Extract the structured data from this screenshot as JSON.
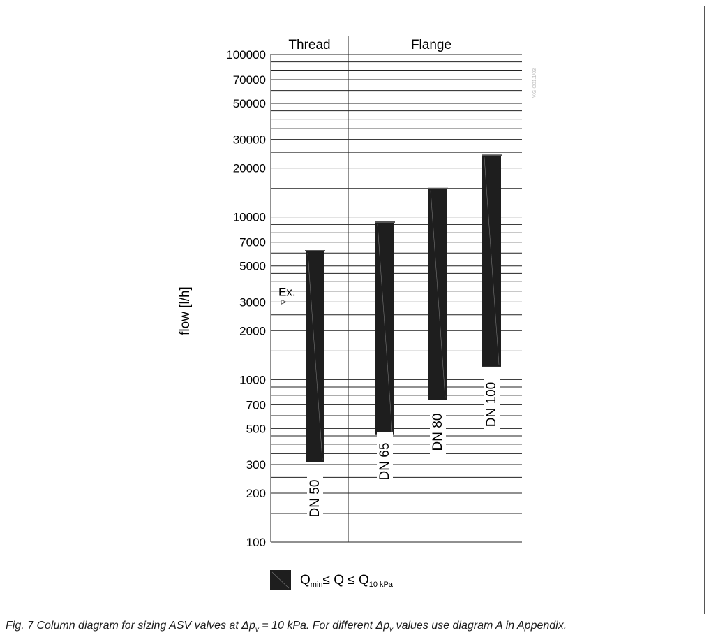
{
  "chart_data": {
    "type": "range-bar",
    "ylabel": "flow [l/h]",
    "yscale": "log",
    "ylim": [
      100,
      100000
    ],
    "ytick_labels": [
      "100000",
      "70000",
      "50000",
      "30000",
      "20000",
      "10000",
      "7000",
      "5000",
      "3000",
      "2000",
      "1000",
      "700",
      "500",
      "300",
      "200",
      "100"
    ],
    "ytick_values": [
      100000,
      70000,
      50000,
      30000,
      20000,
      10000,
      7000,
      5000,
      3000,
      2000,
      1000,
      700,
      500,
      300,
      200,
      100
    ],
    "grid_lines": [
      100,
      150,
      200,
      250,
      300,
      350,
      400,
      450,
      500,
      600,
      700,
      800,
      900,
      1000,
      1500,
      2000,
      2500,
      3000,
      3500,
      4000,
      4500,
      5000,
      6000,
      7000,
      8000,
      9000,
      10000,
      15000,
      20000,
      25000,
      30000,
      35000,
      40000,
      45000,
      50000,
      60000,
      70000,
      80000,
      90000,
      100000
    ],
    "groups": [
      {
        "label": "Thread",
        "bars": [
          "DN 50"
        ]
      },
      {
        "label": "Flange",
        "bars": [
          "DN 65",
          "DN 80",
          "DN 100"
        ]
      }
    ],
    "bars": [
      {
        "label": "DN 50",
        "min": 310,
        "max": 6200
      },
      {
        "label": "DN 65",
        "min": 460,
        "max": 9300
      },
      {
        "label": "DN 80",
        "min": 750,
        "max": 15000
      },
      {
        "label": "DN 100",
        "min": 1200,
        "max": 24000
      }
    ],
    "example": {
      "label": "Ex.",
      "value": 3000
    },
    "legend": {
      "text": "Q",
      "sub_min": "min",
      "relation": "≤ Q ≤ Q",
      "sub_max": "10 kPa"
    },
    "watermark": "V.G.O01.1/03"
  },
  "caption": {
    "part1": "Fig. 7 Column diagram for sizing ASV valves at Δp",
    "sub1": "v",
    "part2": " = 10 kPa. For different Δp",
    "sub2": "v",
    "part3": " values use diagram A in Appendix."
  },
  "colors": {
    "bar": "#1e1e1e",
    "grid": "#222222",
    "watermark": "#bbbbbb"
  }
}
